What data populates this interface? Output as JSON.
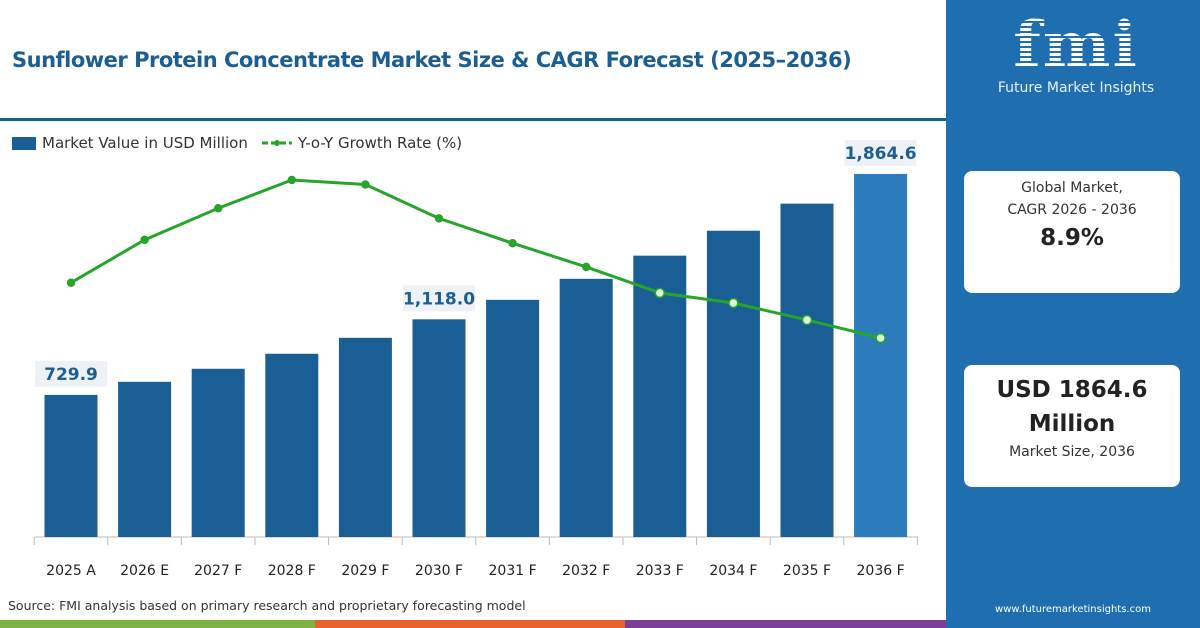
{
  "title": "Sunflower Protein Concentrate Market Size & CAGR Forecast (2025–2036)",
  "source": "Source: FMI analysis based on primary research and proprietary forecasting model",
  "sidebar": {
    "logo_text": "fmi",
    "logo_subtitle": "Future Market Insights",
    "card1": {
      "line1": "Global Market,",
      "line2": "CAGR 2026 - 2036",
      "value": "8.9%"
    },
    "card2": {
      "line1": "USD 1864.6",
      "line2": "Million",
      "caption": "Market Size, 2036"
    },
    "url": "www.futuremarketinsights.com"
  },
  "colors": {
    "bar": "#1a5e96",
    "bar_highlight": "#2b7bbd",
    "line": "#27a52a",
    "title": "#1d5e91",
    "sidebar": "#1f6fb0"
  },
  "chart_data": {
    "type": "bar+line",
    "categories": [
      "2025 A",
      "2026 E",
      "2027 F",
      "2028 F",
      "2029 F",
      "2030 F",
      "2031 F",
      "2032 F",
      "2033 F",
      "2034 F",
      "2035 F",
      "2036 F"
    ],
    "series": [
      {
        "name": "Market Value in USD Million",
        "type": "bar",
        "values": [
          729.9,
          797,
          864,
          941,
          1023,
          1118.0,
          1218,
          1326,
          1445,
          1573,
          1712,
          1864.6
        ]
      },
      {
        "name": "Y-o-Y Growth Rate (%)",
        "type": "line",
        "values": [
          8.69,
          9.07,
          9.35,
          9.6,
          9.56,
          9.26,
          9.04,
          8.83,
          8.6,
          8.51,
          8.36,
          8.2
        ]
      }
    ],
    "data_labels": [
      {
        "index": 0,
        "text": "729.9"
      },
      {
        "index": 5,
        "text": "1,118.0"
      },
      {
        "index": 11,
        "text": "1,864.6"
      }
    ],
    "y_axis_visible": false,
    "grid": false,
    "legend": "top-left"
  }
}
